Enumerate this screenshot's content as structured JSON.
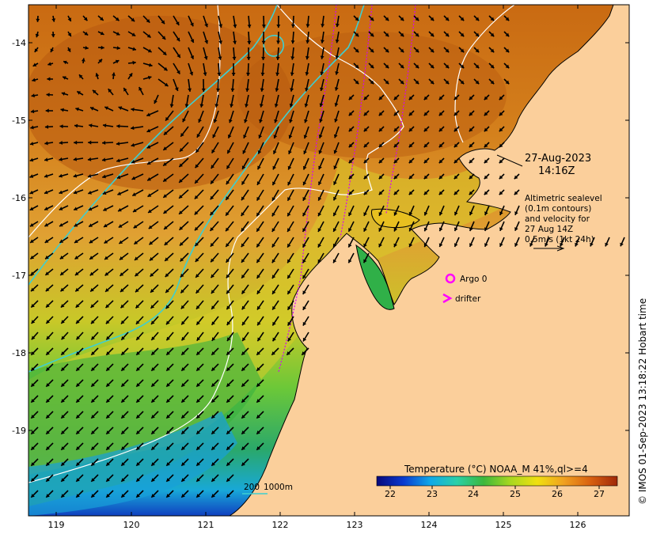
{
  "map": {
    "longitude_ticks": [
      "119",
      "120",
      "121",
      "122",
      "123",
      "124",
      "125",
      "126"
    ],
    "latitude_ticks": [
      "-14",
      "-15",
      "-16",
      "-17",
      "-18",
      "-19"
    ],
    "colors": {
      "land": "#fbcf9b",
      "contour_sealevel": "#ffffff",
      "contour_depth": "#3ecfd0",
      "drifter_track": "#d400ff",
      "argo_marker": "#ff00ff"
    }
  },
  "annotations": {
    "date": "27-Aug-2023",
    "time": "14:16Z",
    "altimetry_line1": "Altimetric sealevel",
    "altimetry_line2": "(0.1m contours)",
    "altimetry_line3": "and velocity for",
    "altimetry_line4": "27 Aug 14Z",
    "altimetry_line5": "0.5m/s (1kt 24h)"
  },
  "legend": {
    "argo_label": "Argo 0",
    "drifter_label": "drifter",
    "bathy_label_200": "200",
    "bathy_label_1000": "1000m"
  },
  "colorbar": {
    "title": "Temperature (°C) NOAA_M 41%,ql>=4",
    "ticks": [
      "22",
      "23",
      "24",
      "25",
      "26",
      "27"
    ],
    "gradient": [
      "#08087a",
      "#0a3ad0",
      "#10a8e8",
      "#2ad0a8",
      "#3cb83c",
      "#a8d820",
      "#f0e010",
      "#f0a020",
      "#d86010",
      "#a02808"
    ]
  },
  "credit": "© IMOS 01-Sep-2023 13:18:22 Hobart time"
}
